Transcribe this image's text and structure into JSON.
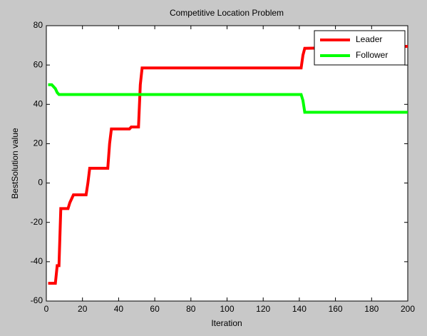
{
  "chart_data": {
    "type": "line",
    "title": "Competitive Location Problem",
    "x_label": "Iteration",
    "y_label": "BestSolution value",
    "xlim": [
      0,
      200
    ],
    "ylim": [
      -60,
      80
    ],
    "xticks": [
      0,
      20,
      40,
      60,
      80,
      100,
      120,
      140,
      160,
      180,
      200
    ],
    "yticks": [
      -60,
      -40,
      -20,
      0,
      20,
      40,
      60,
      80
    ],
    "legend": "upper right",
    "series": [
      {
        "name": "Leader",
        "color": "#ff0000",
        "x": [
          1,
          5,
          6,
          7,
          8,
          12,
          13,
          15,
          22,
          23,
          24,
          34,
          35,
          36,
          46,
          47,
          51,
          52,
          53,
          141,
          142,
          143,
          200
        ],
        "values": [
          -51,
          -51,
          -42,
          -42,
          -13,
          -13,
          -10,
          -6,
          -6,
          0,
          7.5,
          7.5,
          20,
          27.5,
          27.5,
          28.5,
          28.5,
          50,
          58.5,
          58.5,
          65,
          68.5,
          69.5
        ]
      },
      {
        "name": "Follower",
        "color": "#00ff00",
        "x": [
          1,
          3,
          4,
          5,
          6,
          7,
          141,
          142,
          143,
          200
        ],
        "values": [
          50,
          50,
          49,
          48,
          46,
          45,
          45,
          42,
          36,
          36
        ]
      }
    ]
  }
}
